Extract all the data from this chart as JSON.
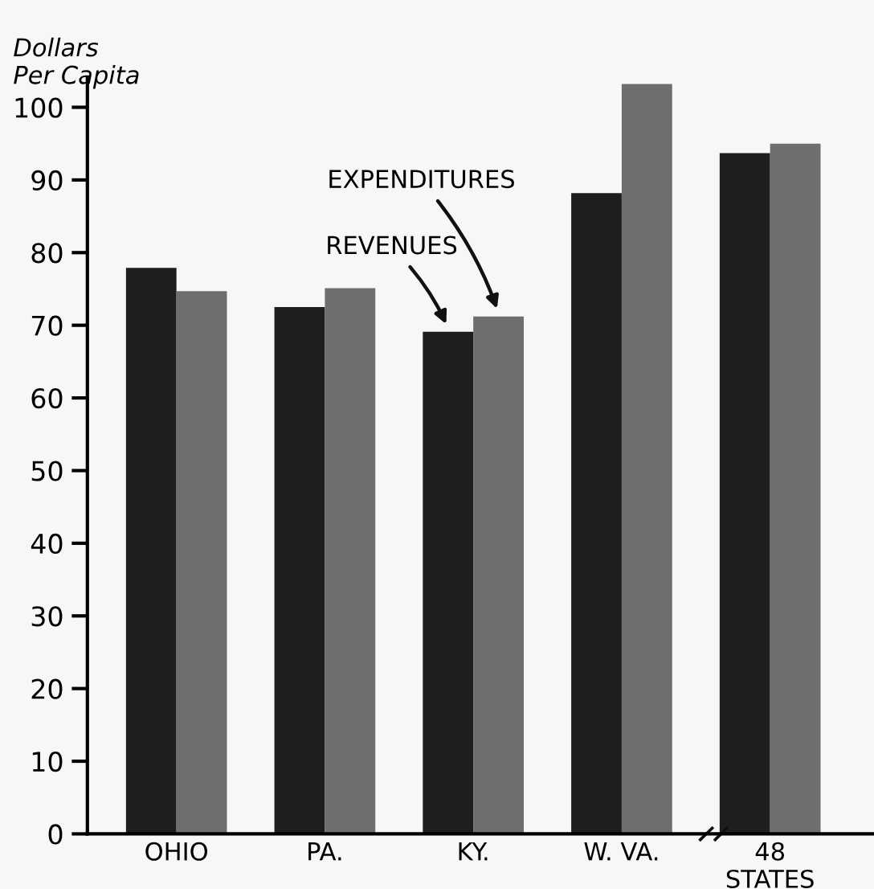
{
  "chart_data": {
    "type": "bar",
    "ylabel": "Dollars\nPer Capita",
    "categories": [
      "OHIO",
      "PA.",
      "KY.",
      "W. VA.",
      "48\nSTATES"
    ],
    "series": [
      {
        "name": "REVENUES",
        "color": "#1e1e1e",
        "values": [
          77.9,
          72.5,
          69.1,
          88.2,
          93.7
        ]
      },
      {
        "name": "EXPENDITURES",
        "color": "#6e6e6e",
        "values": [
          74.7,
          75.1,
          71.2,
          103.2,
          95.0
        ]
      }
    ],
    "ylim": [
      0,
      104
    ],
    "yticks": [
      0,
      10,
      20,
      30,
      40,
      50,
      60,
      70,
      80,
      90,
      100
    ],
    "grid": false,
    "legend": false
  }
}
